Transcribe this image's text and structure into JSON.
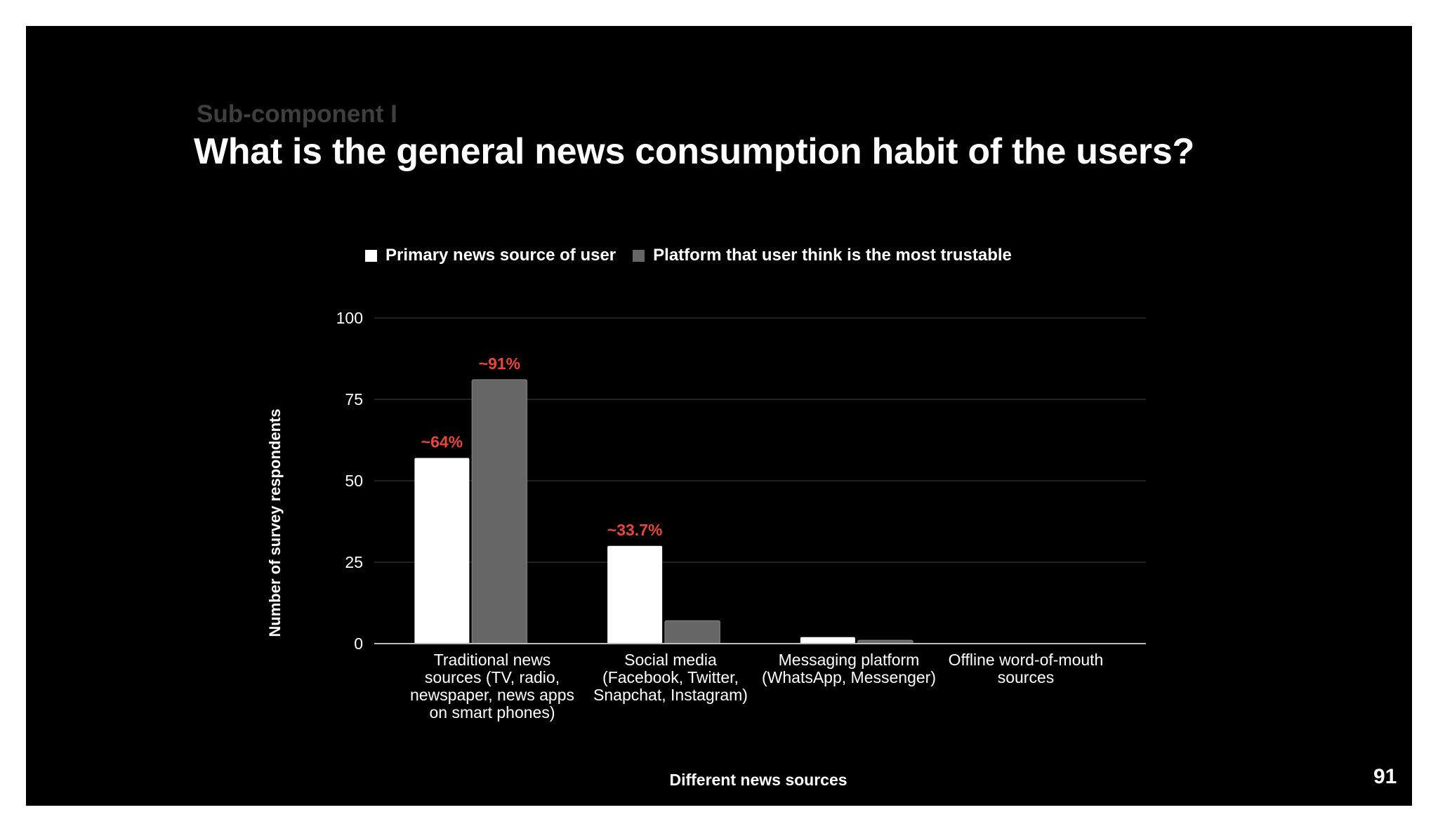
{
  "slide": {
    "subheading": "Sub-component I",
    "heading": "What is the general news consumption habit of the users?",
    "page_number": "91"
  },
  "colors": {
    "background": "#000000",
    "primary_series": "#ffffff",
    "trust_series": "#666666",
    "annotation": "#e8463a",
    "gridline": "#333333"
  },
  "chart_data": {
    "type": "bar",
    "xlabel": "Different news sources",
    "ylabel": "Number of survey respondents",
    "ylim": [
      0,
      100
    ],
    "yticks": [
      0,
      25,
      50,
      75,
      100
    ],
    "grid": true,
    "legend_position": "top",
    "categories": [
      "Traditional news sources (TV, radio, newspaper, news apps on smart phones)",
      "Social media (Facebook, Twitter, Snapchat, Instagram)",
      "Messaging platform (WhatsApp, Messenger)",
      "Offline word-of-mouth sources"
    ],
    "series": [
      {
        "name": "Primary news source of user",
        "values": [
          57,
          30,
          2,
          0
        ]
      },
      {
        "name": "Platform that user think is the most trustable",
        "values": [
          81,
          7,
          1,
          0
        ]
      }
    ],
    "annotations": [
      {
        "text": "~64%",
        "category": 0,
        "series": 0
      },
      {
        "text": "~91%",
        "category": 0,
        "series": 1
      },
      {
        "text": "~33.7%",
        "category": 1,
        "series": 0
      }
    ]
  }
}
